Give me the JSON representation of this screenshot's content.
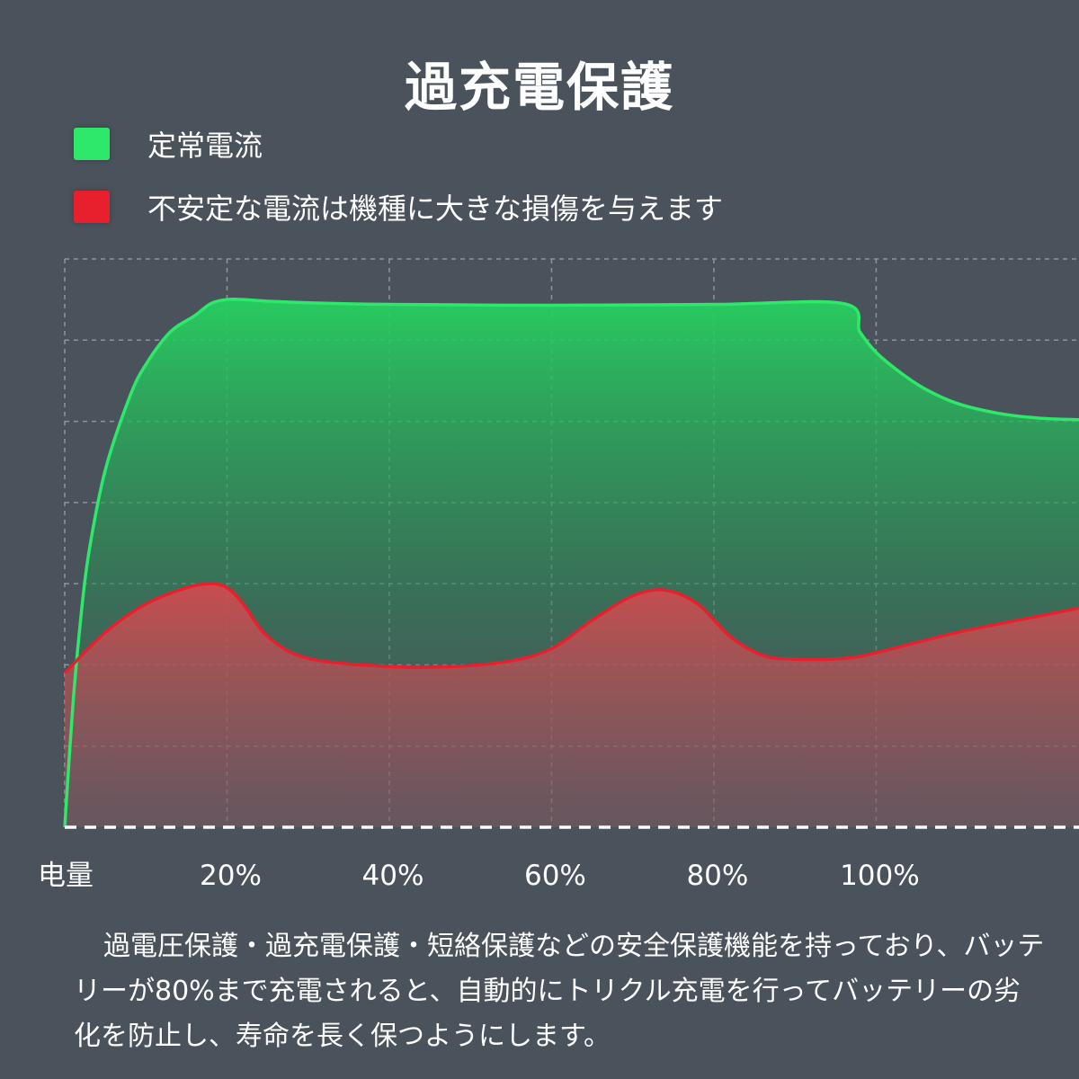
{
  "title": "過充電保護",
  "chart_data": {
    "type": "area",
    "title": "過充電保護",
    "xlabel": "电量",
    "x_ticks": [
      "20%",
      "40%",
      "60%",
      "80%",
      "100%"
    ],
    "x_tick_values": [
      20,
      40,
      60,
      80,
      100
    ],
    "xlim": [
      0,
      125
    ],
    "ylim": [
      0,
      7
    ],
    "grid": true,
    "legend_position": "top-left",
    "series": [
      {
        "name": "定常電流",
        "color": "#2ee86a",
        "x": [
          0,
          1,
          2,
          3,
          5,
          8,
          10,
          13,
          16,
          18,
          20,
          22,
          25,
          30,
          40,
          60,
          80,
          96,
          98,
          100,
          103,
          106,
          110,
          115,
          120,
          125
        ],
        "y": [
          0,
          1.5,
          2.6,
          3.4,
          4.4,
          5.3,
          5.7,
          6.1,
          6.3,
          6.45,
          6.5,
          6.5,
          6.48,
          6.46,
          6.44,
          6.43,
          6.44,
          6.45,
          6.1,
          5.85,
          5.6,
          5.4,
          5.22,
          5.1,
          5.04,
          5.02
        ]
      },
      {
        "name": "不安定な電流は機種に大きな損傷を与えます",
        "color": "#e8202e",
        "x": [
          0,
          5,
          10,
          15,
          18,
          20,
          22,
          25,
          30,
          40,
          48,
          55,
          60,
          65,
          70,
          74,
          78,
          82,
          86,
          90,
          96,
          100,
          110,
          120,
          125
        ],
        "y": [
          1.9,
          2.4,
          2.75,
          2.95,
          3.0,
          2.95,
          2.75,
          2.35,
          2.08,
          1.98,
          1.98,
          2.05,
          2.2,
          2.55,
          2.85,
          2.92,
          2.75,
          2.35,
          2.12,
          2.07,
          2.08,
          2.15,
          2.4,
          2.6,
          2.7
        ]
      }
    ]
  },
  "note": "過電圧保護・過充電保護・短絡保護などの安全保護機能を持っており、バッテリーが80%まで充電されると、自動的にトリクル充電を行ってバッテリーの劣化を防止し、寿命を長く保つようにします。"
}
